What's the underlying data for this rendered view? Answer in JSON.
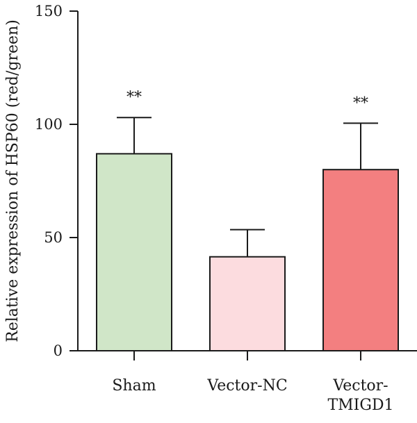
{
  "chart_data": {
    "type": "bar",
    "title": "",
    "xlabel": "",
    "ylabel": "Relative expression of HSP60 (red/green)",
    "ylim": [
      0,
      150
    ],
    "yticks": [
      0,
      50,
      100,
      150
    ],
    "grid": false,
    "categories": [
      [
        "Sham"
      ],
      [
        "Vector-NC"
      ],
      [
        "Vector-",
        "TMIGD1"
      ]
    ],
    "values": [
      87,
      41.5,
      80
    ],
    "errors": [
      16,
      12,
      20.5
    ],
    "significance": [
      "**",
      "",
      "**"
    ],
    "colors": [
      "#d0e6c8",
      "#fcdcdf",
      "#f37f80"
    ]
  }
}
